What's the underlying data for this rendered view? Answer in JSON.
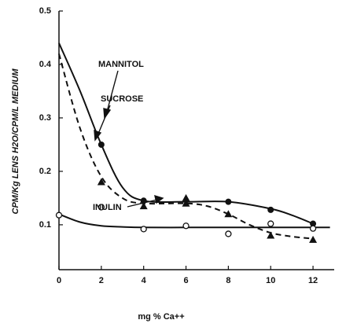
{
  "chart_data": {
    "type": "scatter",
    "x_label": "mg % Ca++",
    "y_label": "CPM/Kg LENS H2O/CPM/L MEDIUM",
    "xlim": [
      0,
      13
    ],
    "ylim": [
      0.016,
      0.5
    ],
    "xticks": [
      0,
      2,
      4,
      6,
      8,
      10,
      12
    ],
    "yticks": [
      0.1,
      0.2,
      0.3,
      0.4,
      0.5
    ],
    "series": [
      {
        "name": "MANNITOL",
        "marker": "filled-circle",
        "color": "#111111",
        "dashed": false,
        "x": [
          2,
          4,
          8,
          10,
          12
        ],
        "values": [
          0.25,
          0.145,
          0.143,
          0.128,
          0.102
        ],
        "curve_x": [
          0,
          1,
          2,
          3,
          4,
          6,
          8,
          10,
          11,
          12
        ],
        "curve_y": [
          0.44,
          0.35,
          0.25,
          0.17,
          0.145,
          0.143,
          0.143,
          0.13,
          0.118,
          0.102
        ]
      },
      {
        "name": "SUCROSE",
        "marker": "filled-triangle",
        "color": "#111111",
        "dashed": true,
        "x": [
          2,
          4,
          6,
          6,
          8,
          10,
          12
        ],
        "values": [
          0.18,
          0.135,
          0.15,
          0.14,
          0.12,
          0.08,
          0.072
        ],
        "curve_x": [
          0,
          1,
          2,
          3,
          4,
          6,
          7,
          8,
          9,
          10,
          11,
          12
        ],
        "curve_y": [
          0.42,
          0.28,
          0.19,
          0.15,
          0.14,
          0.14,
          0.135,
          0.12,
          0.1,
          0.085,
          0.078,
          0.074
        ]
      },
      {
        "name": "INULIN",
        "marker": "open-circle",
        "color": "#111111",
        "dashed": false,
        "x": [
          0,
          2,
          4,
          6,
          8,
          10,
          12
        ],
        "values": [
          0.118,
          0.133,
          0.092,
          0.098,
          0.083,
          0.102,
          0.093
        ],
        "curve_x": [
          0,
          1,
          2,
          3,
          4,
          6,
          8,
          10,
          12,
          12.8
        ],
        "curve_y": [
          0.12,
          0.105,
          0.098,
          0.096,
          0.095,
          0.095,
          0.095,
          0.095,
          0.095,
          0.095
        ]
      }
    ]
  }
}
